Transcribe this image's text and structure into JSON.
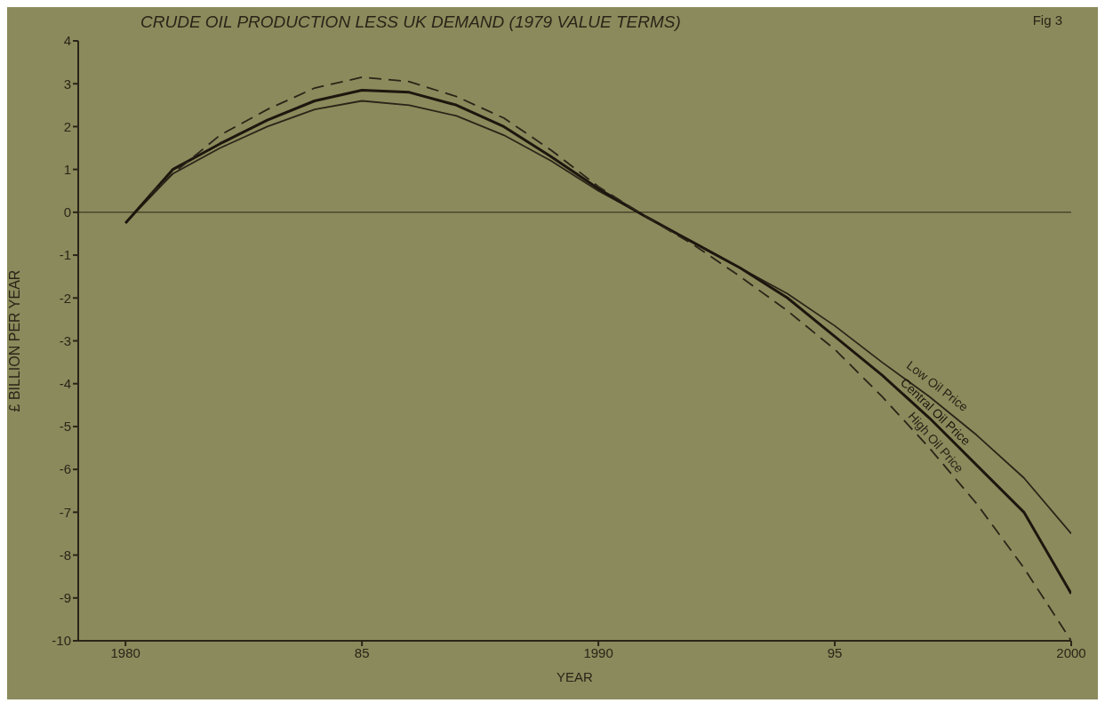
{
  "chart_data": {
    "type": "line",
    "title": "CRUDE OIL PRODUCTION LESS UK DEMAND (1979 VALUE TERMS)",
    "annotations": [
      "Fig 3"
    ],
    "xlabel": "YEAR",
    "ylabel": "£ BILLION PER YEAR",
    "x": [
      1980,
      1981,
      1982,
      1983,
      1984,
      1985,
      1986,
      1987,
      1988,
      1989,
      1990,
      1991,
      1992,
      1993,
      1994,
      1995,
      1996,
      1997,
      1998,
      1999,
      2000
    ],
    "series": [
      {
        "name": "Low Oil Price",
        "color": "#2a2418",
        "line_style": "solid",
        "values": [
          -0.25,
          0.9,
          1.5,
          2.0,
          2.4,
          2.6,
          2.5,
          2.25,
          1.8,
          1.2,
          0.5,
          -0.1,
          -0.7,
          -1.3,
          -1.9,
          -2.65,
          -3.5,
          -4.3,
          -5.2,
          -6.2,
          -7.5
        ]
      },
      {
        "name": "Central Oil Price",
        "color": "#1c160e",
        "line_style": "solid",
        "values": [
          -0.25,
          1.0,
          1.6,
          2.15,
          2.6,
          2.85,
          2.8,
          2.5,
          2.0,
          1.3,
          0.55,
          -0.1,
          -0.7,
          -1.3,
          -2.0,
          -2.9,
          -3.8,
          -4.8,
          -5.9,
          -7.0,
          -8.9
        ]
      },
      {
        "name": "High Oil Price",
        "color": "#2a2418",
        "line_style": "dashed",
        "x": [
          1980.5,
          1981,
          1982,
          1983,
          1984,
          1985,
          1986,
          1987,
          1988,
          1989,
          1990,
          1991,
          1992,
          1993,
          1994,
          1995,
          1996,
          1997,
          1998,
          1999,
          2000
        ],
        "values": [
          0.4,
          0.9,
          1.8,
          2.4,
          2.9,
          3.15,
          3.05,
          2.7,
          2.2,
          1.45,
          0.6,
          -0.1,
          -0.75,
          -1.5,
          -2.3,
          -3.2,
          -4.3,
          -5.5,
          -6.8,
          -8.3,
          -10
        ]
      }
    ],
    "xlim": [
      1979,
      2000
    ],
    "xticks": [
      1980,
      {
        "value": 1985,
        "label": "85"
      },
      1990,
      {
        "value": 1995,
        "label": "95"
      },
      2000
    ],
    "ylim": [
      -10,
      4
    ],
    "yticks": [
      -10,
      -9,
      -8,
      -7,
      -6,
      -5,
      -4,
      -3,
      -2,
      -1,
      0,
      1,
      2,
      3,
      4
    ],
    "ref_lines": [
      {
        "axis": "y",
        "value": 0,
        "color": "#2a2418",
        "line_style": "solid"
      }
    ],
    "grid": false,
    "legend": false,
    "marker": "none"
  }
}
